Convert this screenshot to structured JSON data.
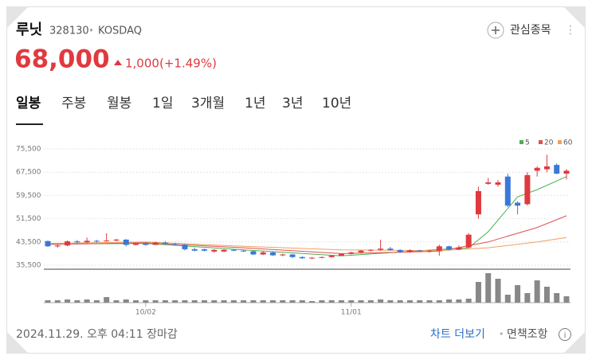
{
  "header": {
    "name": "루닛",
    "code": "328130",
    "market": "KOSDAQ",
    "price": "68,000",
    "change": "1,000",
    "change_pct": "(+1.49%)",
    "watch": "관심종목"
  },
  "tabs": [
    "일봉",
    "주봉",
    "월봉",
    "1일",
    "3개월",
    "1년",
    "3년",
    "10년"
  ],
  "chart": {
    "type": "candlestick",
    "up_color": "#e0393e",
    "down_color": "#3a78d8",
    "ylim": [
      35500,
      75500
    ],
    "yticks": [
      {
        "value": 75500,
        "label": "75,500"
      },
      {
        "value": 67500,
        "label": "67,500"
      },
      {
        "value": 59500,
        "label": "59,500"
      },
      {
        "value": 51500,
        "label": "51,500"
      },
      {
        "value": 43500,
        "label": "43,500"
      },
      {
        "value": 35500,
        "label": "35,500"
      }
    ],
    "xticks": [
      {
        "value": 10,
        "label": "10/02"
      },
      {
        "value": 31,
        "label": "11/01"
      }
    ],
    "candles": [
      {
        "open": 43800,
        "high": 44000,
        "low": 41800,
        "close": 42000
      },
      {
        "open": 42000,
        "high": 42600,
        "low": 41500,
        "close": 42300
      },
      {
        "open": 42300,
        "high": 44000,
        "low": 42000,
        "close": 43700
      },
      {
        "open": 43700,
        "high": 44200,
        "low": 43000,
        "close": 43400
      },
      {
        "open": 43400,
        "high": 45000,
        "low": 43000,
        "close": 43900
      },
      {
        "open": 43900,
        "high": 44200,
        "low": 43300,
        "close": 43800
      },
      {
        "open": 43800,
        "high": 46500,
        "low": 43600,
        "close": 44000
      },
      {
        "open": 44000,
        "high": 44600,
        "low": 43700,
        "close": 44300
      },
      {
        "open": 44300,
        "high": 44500,
        "low": 42000,
        "close": 42500
      },
      {
        "open": 42500,
        "high": 43300,
        "low": 42300,
        "close": 43000
      },
      {
        "open": 43000,
        "high": 43400,
        "low": 42200,
        "close": 42500
      },
      {
        "open": 42500,
        "high": 43600,
        "low": 42400,
        "close": 43300
      },
      {
        "open": 43300,
        "high": 43800,
        "low": 42600,
        "close": 42800
      },
      {
        "open": 42800,
        "high": 43200,
        "low": 42300,
        "close": 42600
      },
      {
        "open": 42600,
        "high": 42800,
        "low": 40600,
        "close": 41000
      },
      {
        "open": 41000,
        "high": 41500,
        "low": 40300,
        "close": 40500
      },
      {
        "open": 41000,
        "high": 41200,
        "low": 40300,
        "close": 40500
      },
      {
        "open": 40200,
        "high": 41000,
        "low": 39800,
        "close": 40800
      },
      {
        "open": 40200,
        "high": 41000,
        "low": 40000,
        "close": 40800
      },
      {
        "open": 40800,
        "high": 41000,
        "low": 40300,
        "close": 40500
      },
      {
        "open": 40500,
        "high": 40800,
        "low": 40100,
        "close": 40300
      },
      {
        "open": 40300,
        "high": 40500,
        "low": 39000,
        "close": 39200
      },
      {
        "open": 39200,
        "high": 40300,
        "low": 39000,
        "close": 39900
      },
      {
        "open": 39900,
        "high": 40200,
        "low": 38700,
        "close": 38900
      },
      {
        "open": 38900,
        "high": 39500,
        "low": 38600,
        "close": 39200
      },
      {
        "open": 39200,
        "high": 39400,
        "low": 38000,
        "close": 38300
      },
      {
        "open": 38300,
        "high": 38600,
        "low": 37700,
        "close": 37900
      },
      {
        "open": 37900,
        "high": 38300,
        "low": 37600,
        "close": 38100
      },
      {
        "open": 38100,
        "high": 38500,
        "low": 37900,
        "close": 38300
      },
      {
        "open": 38300,
        "high": 38900,
        "low": 38100,
        "close": 38800
      },
      {
        "open": 38800,
        "high": 39600,
        "low": 38600,
        "close": 39400
      },
      {
        "open": 39400,
        "high": 40100,
        "low": 39200,
        "close": 39900
      },
      {
        "open": 39900,
        "high": 40800,
        "low": 39500,
        "close": 40500
      },
      {
        "open": 40500,
        "high": 41000,
        "low": 40200,
        "close": 40800
      },
      {
        "open": 40800,
        "high": 44300,
        "low": 40400,
        "close": 41200
      },
      {
        "open": 41200,
        "high": 41800,
        "low": 40500,
        "close": 40700
      },
      {
        "open": 40700,
        "high": 41000,
        "low": 39700,
        "close": 40000
      },
      {
        "open": 40000,
        "high": 41000,
        "low": 39800,
        "close": 40600
      },
      {
        "open": 40600,
        "high": 40800,
        "low": 40000,
        "close": 40300
      },
      {
        "open": 40300,
        "high": 40700,
        "low": 39800,
        "close": 40500
      },
      {
        "open": 40500,
        "high": 42600,
        "low": 38800,
        "close": 42000
      },
      {
        "open": 42000,
        "high": 42200,
        "low": 40600,
        "close": 40900
      },
      {
        "open": 40900,
        "high": 42300,
        "low": 40700,
        "close": 41600
      },
      {
        "open": 41600,
        "high": 46500,
        "low": 41400,
        "close": 46000
      },
      {
        "open": 53000,
        "high": 62500,
        "low": 51500,
        "close": 61000
      },
      {
        "open": 63500,
        "high": 65500,
        "low": 63200,
        "close": 64000
      },
      {
        "open": 63200,
        "high": 64800,
        "low": 62500,
        "close": 64000
      },
      {
        "open": 66000,
        "high": 67000,
        "low": 55500,
        "close": 56000
      },
      {
        "open": 57000,
        "high": 57500,
        "low": 53000,
        "close": 56000
      },
      {
        "open": 56500,
        "high": 67500,
        "low": 56000,
        "close": 66500
      },
      {
        "open": 68000,
        "high": 69500,
        "low": 66000,
        "close": 69000
      },
      {
        "open": 68500,
        "high": 73500,
        "low": 67500,
        "close": 69500
      },
      {
        "open": 70000,
        "high": 70500,
        "low": 66800,
        "close": 67000
      },
      {
        "open": 67000,
        "high": 68500,
        "low": 65000,
        "close": 68000
      }
    ],
    "ma": [
      {
        "name": "5",
        "color": "#4caf50",
        "x": [
          0,
          10,
          20,
          30,
          40,
          43,
          45,
          48,
          50,
          53
        ],
        "values": [
          42800,
          43000,
          40800,
          38700,
          40900,
          41500,
          47000,
          59000,
          61500,
          66000
        ]
      },
      {
        "name": "20",
        "color": "#e15050",
        "x": [
          0,
          10,
          20,
          30,
          40,
          45,
          50,
          53
        ],
        "values": [
          42700,
          43200,
          41500,
          39500,
          40300,
          43500,
          48500,
          52500
        ]
      },
      {
        "name": "60",
        "color": "#f0a060",
        "x": [
          0,
          10,
          20,
          30,
          40,
          45,
          50,
          53
        ],
        "values": [
          43000,
          43500,
          42000,
          40800,
          40500,
          41500,
          43500,
          45000
        ]
      }
    ],
    "volume": [
      3,
      3,
      4,
      3,
      4,
      3,
      7,
      3,
      4,
      3,
      3,
      3,
      3,
      3,
      3,
      3,
      3,
      3,
      3,
      3,
      3,
      3,
      3,
      3,
      3,
      3,
      3,
      2,
      3,
      3,
      3,
      3,
      3,
      3,
      4,
      3,
      3,
      3,
      3,
      3,
      3,
      4,
      4,
      5,
      26,
      37,
      30,
      10,
      22,
      12,
      28,
      20,
      12,
      8
    ]
  },
  "footer": {
    "time": "2024.11.29. 오후 04:11 장마감",
    "more": "차트 더보기",
    "disclaimer": "면책조항"
  }
}
